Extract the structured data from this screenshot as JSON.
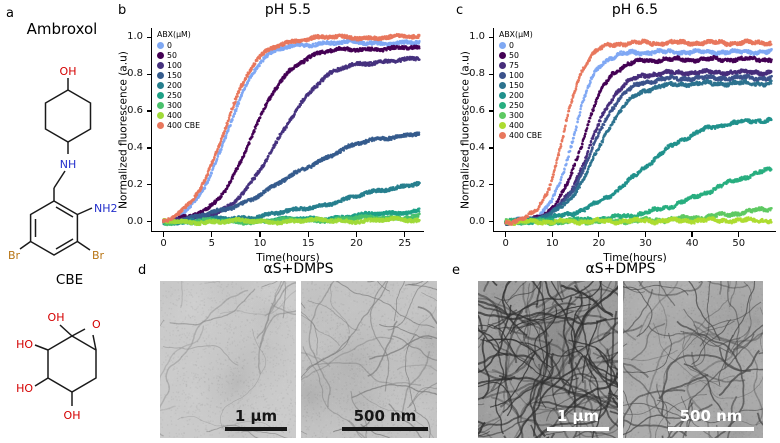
{
  "figure": {
    "panel_labels": {
      "a": "a",
      "b": "b",
      "c": "c",
      "d": "d",
      "e": "e"
    }
  },
  "panel_a": {
    "title": "Ambroxol",
    "cbe_title": "CBE",
    "atoms": {
      "oh": "OH",
      "ho": "HO",
      "nh": "NH",
      "nh2": "NH2",
      "br": "Br",
      "o": "O"
    },
    "colors": {
      "oxygen": "#d40000",
      "nitrogen": "#2430cc",
      "bromine": "#b87514",
      "bond": "#1a1a1a"
    }
  },
  "chart_data": [
    {
      "type": "scatter",
      "panel": "b",
      "title": "pH 5.5",
      "xlabel": "Time(hours)",
      "ylabel": "Normalized fluorescence (a.u)",
      "legend_title": "ABX(µM)",
      "legend_position": "upper left",
      "grid": false,
      "xlim": [
        -1.2,
        27
      ],
      "ylim": [
        -0.05,
        1.05
      ],
      "x_end": 26.5,
      "xticks": [
        0,
        5,
        10,
        15,
        20,
        25
      ],
      "xtick_labels": [
        "0",
        "5",
        "10",
        "15",
        "20",
        "25"
      ],
      "yticks": [
        0,
        0.2,
        0.4,
        0.6,
        0.8,
        1
      ],
      "ytick_labels": [
        "0.0",
        "0.2",
        "0.4",
        "0.6",
        "0.8",
        "1.0"
      ],
      "series": [
        {
          "name": "0",
          "color": "#7fa8f3",
          "plateau": 0.97,
          "t50": 6.5,
          "tau": 1.7,
          "y_final": 0.97
        },
        {
          "name": "50",
          "color": "#440154",
          "plateau": 0.94,
          "t50": 9.2,
          "tau": 2.0,
          "y_final": 0.93
        },
        {
          "name": "100",
          "color": "#46327e",
          "plateau": 0.88,
          "t50": 11.8,
          "tau": 2.4,
          "y_final": 0.86
        },
        {
          "name": "150",
          "color": "#365c8d",
          "plateau": 0.5,
          "t50": 13.0,
          "tau": 4.2,
          "y_final": 0.47
        },
        {
          "name": "200",
          "color": "#277f8e",
          "plateau": 0.28,
          "t50": 20.0,
          "tau": 5.5,
          "y_final": 0.21
        },
        {
          "name": "250",
          "color": "#1fa187",
          "plateau": 0.12,
          "t50": 26.0,
          "tau": 6.0,
          "y_final": 0.06
        },
        {
          "name": "300",
          "color": "#4ac16d",
          "plateau": 0.06,
          "t50": 26.0,
          "tau": 7.0,
          "y_final": 0.03
        },
        {
          "name": "400",
          "color": "#a0da39",
          "plateau": 0.012,
          "t50": 18.0,
          "tau": 6.0,
          "y_final": 0.01
        },
        {
          "name": "400 CBE",
          "color": "#e8775d",
          "plateau": 1.0,
          "t50": 6.2,
          "tau": 1.8,
          "y_final": 0.99
        }
      ]
    },
    {
      "type": "scatter",
      "panel": "c",
      "title": "pH 6.5",
      "xlabel": "Time(hours)",
      "ylabel": "Normalized fluorescence (a.u)",
      "legend_title": "ABX(µM)",
      "legend_position": "upper left",
      "grid": false,
      "xlim": [
        -2.5,
        58
      ],
      "ylim": [
        -0.05,
        1.05
      ],
      "x_end": 57,
      "xticks": [
        0,
        10,
        20,
        30,
        40,
        50
      ],
      "xtick_labels": [
        "0",
        "10",
        "20",
        "30",
        "40",
        "50"
      ],
      "yticks": [
        0,
        0.2,
        0.4,
        0.6,
        0.8,
        1
      ],
      "ytick_labels": [
        "0.0",
        "0.2",
        "0.4",
        "0.6",
        "0.8",
        "1.0"
      ],
      "series": [
        {
          "name": "0",
          "color": "#7fa8f3",
          "plateau": 0.92,
          "t50": 14.5,
          "tau": 2.4,
          "y_final": 0.92
        },
        {
          "name": "50",
          "color": "#440154",
          "plateau": 0.88,
          "t50": 16.5,
          "tau": 2.8,
          "y_final": 0.88
        },
        {
          "name": "75",
          "color": "#472d7b",
          "plateau": 0.81,
          "t50": 18.0,
          "tau": 3.1,
          "y_final": 0.81
        },
        {
          "name": "100",
          "color": "#3b528b",
          "plateau": 0.78,
          "t50": 18.5,
          "tau": 3.3,
          "y_final": 0.78
        },
        {
          "name": "150",
          "color": "#2c728e",
          "plateau": 0.75,
          "t50": 19.5,
          "tau": 3.6,
          "y_final": 0.75
        },
        {
          "name": "200",
          "color": "#21918c",
          "plateau": 0.56,
          "t50": 29.0,
          "tau": 6.5,
          "y_final": 0.55
        },
        {
          "name": "250",
          "color": "#28ae80",
          "plateau": 0.34,
          "t50": 44.0,
          "tau": 8.0,
          "y_final": 0.28
        },
        {
          "name": "300",
          "color": "#5ec962",
          "plateau": 0.13,
          "t50": 55.0,
          "tau": 9.0,
          "y_final": 0.07
        },
        {
          "name": "400",
          "color": "#addc30",
          "plateau": 0.008,
          "t50": 25.0,
          "tau": 8.0,
          "y_final": 0.01
        },
        {
          "name": "400 CBE",
          "color": "#e8775d",
          "plateau": 0.97,
          "t50": 12.5,
          "tau": 2.3,
          "y_final": 0.97
        }
      ]
    }
  ],
  "panel_d": {
    "title": "αS+DMPS",
    "images": [
      {
        "scalebar": "1 µm",
        "bar_color": "#161616"
      },
      {
        "scalebar": "500 nm",
        "bar_color": "#161616"
      }
    ]
  },
  "panel_e": {
    "title": "αS+DMPS",
    "images": [
      {
        "scalebar": "1 µm",
        "bar_color": "#ffffff"
      },
      {
        "scalebar": "500 nm",
        "bar_color": "#ffffff"
      }
    ]
  }
}
